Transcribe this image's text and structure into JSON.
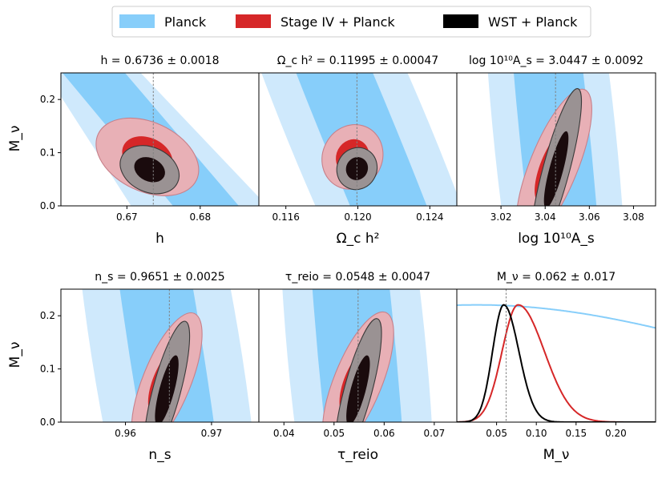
{
  "legend": {
    "items": [
      {
        "label": "Planck",
        "color": "#87cefa"
      },
      {
        "label": "Stage IV + Planck",
        "color": "#d62728"
      },
      {
        "label": "WST + Planck",
        "color": "#000000"
      }
    ]
  },
  "ylabel": "M_ν",
  "colors": {
    "planck_outer": "#cfe9fc",
    "planck_inner": "#87cefa",
    "stage_outer": "#e8b0b6",
    "stage_inner": "#d62728",
    "wst_outer": "#9a9293",
    "wst_inner": "#1a0b0d",
    "truth_line": "#808080"
  },
  "chart_data": [
    {
      "type": "contour",
      "title": "h = 0.6736 ± 0.0018",
      "xlabel": "h",
      "xlim": [
        0.661,
        0.688
      ],
      "ylim": [
        0.0,
        0.25
      ],
      "xticks": [
        0.67,
        0.68
      ],
      "xtick_labels": [
        "0.67",
        "0.68"
      ],
      "yticks": [
        0.0,
        0.1,
        0.2
      ],
      "ytick_labels": [
        "0.0",
        "0.1",
        "0.2"
      ],
      "truth_x": 0.6736,
      "planck": {
        "kind": "band",
        "inner": [
          [
            0.66,
            0.27
          ],
          [
            0.6685,
            0.27
          ],
          [
            0.6865,
            -0.02
          ],
          [
            0.6775,
            -0.02
          ]
        ],
        "outer": [
          [
            0.658,
            0.27
          ],
          [
            0.6705,
            0.27
          ],
          [
            0.6905,
            -0.02
          ],
          [
            0.6715,
            -0.02
          ]
        ]
      },
      "stage_iv": {
        "cx": 0.6728,
        "cy": 0.092,
        "rx_out": 0.0074,
        "ry_out": 0.065,
        "rx_in": 0.0036,
        "ry_in": 0.036,
        "tilt": 25
      },
      "wst": {
        "cx": 0.6731,
        "cy": 0.068,
        "rx_out": 0.0042,
        "ry_out": 0.042,
        "rx_in": 0.0022,
        "ry_in": 0.022,
        "tilt": 25
      }
    },
    {
      "type": "contour",
      "title": "Ω_c h² = 0.11995 ± 0.00047",
      "xlabel": "Ω_c h²",
      "xlim": [
        0.1145,
        0.1255
      ],
      "ylim": [
        0.0,
        0.25
      ],
      "xticks": [
        0.116,
        0.12,
        0.124
      ],
      "xtick_labels": [
        "0.116",
        "0.120",
        "0.124"
      ],
      "yticks": [
        0.0,
        0.1,
        0.2
      ],
      "ytick_labels": [
        "0.0",
        "0.1",
        "0.2"
      ],
      "truth_x": 0.11995,
      "planck": {
        "kind": "vband",
        "cx": 0.1202,
        "half_inner": 0.0021,
        "half_outer": 0.004,
        "tilt": 0.0015
      },
      "stage_iv": {
        "cx": 0.1197,
        "cy": 0.092,
        "rx_out": 0.00165,
        "ry_out": 0.062,
        "rx_in": 0.0009,
        "ry_in": 0.034,
        "tilt": 28
      },
      "wst": {
        "cx": 0.11995,
        "cy": 0.07,
        "rx_out": 0.0011,
        "ry_out": 0.04,
        "rx_in": 0.0006,
        "ry_in": 0.022,
        "tilt": 28
      }
    },
    {
      "type": "contour",
      "title": "log 10¹⁰A_s = 3.0447 ± 0.0092",
      "xlabel": "log 10¹⁰A_s",
      "xlim": [
        3.0,
        3.09
      ],
      "ylim": [
        0.0,
        0.25
      ],
      "xticks": [
        3.02,
        3.04,
        3.06,
        3.08
      ],
      "xtick_labels": [
        "3.02",
        "3.04",
        "3.06",
        "3.08"
      ],
      "yticks": [
        0.0,
        0.1,
        0.2
      ],
      "ytick_labels": [
        "0.0",
        "0.1",
        "0.2"
      ],
      "truth_x": 3.0447,
      "planck": {
        "kind": "vband",
        "cx": 3.0445,
        "half_inner": 0.0155,
        "half_outer": 0.027,
        "tilt": 0.003
      },
      "stage_iv": {
        "cx": 3.044,
        "cy": 0.076,
        "rx_out": 0.037,
        "ry_out": 0.045,
        "rx_in": 0.018,
        "ry_in": 0.025,
        "tilt": -68
      },
      "wst": {
        "cx": 3.045,
        "cy": 0.068,
        "rx_out": 0.038,
        "ry_out": 0.025,
        "rx_in": 0.018,
        "ry_in": 0.013,
        "tilt": -75
      }
    },
    {
      "type": "contour",
      "title": "n_s = 0.9651 ± 0.0025",
      "xlabel": "n_s",
      "xlim": [
        0.9525,
        0.9755
      ],
      "ylim": [
        0.0,
        0.25
      ],
      "xticks": [
        0.96,
        0.97
      ],
      "xtick_labels": [
        "0.96",
        "0.97"
      ],
      "yticks": [
        0.0,
        0.1,
        0.2
      ],
      "ytick_labels": [
        "0.0",
        "0.1",
        "0.2"
      ],
      "truth_x": 0.9651,
      "planck": {
        "kind": "vband",
        "cx": 0.9648,
        "half_inner": 0.0042,
        "half_outer": 0.0085,
        "tilt": 0.0012
      },
      "stage_iv": {
        "cx": 0.9648,
        "cy": 0.077,
        "rx_out": 0.0085,
        "ry_out": 0.045,
        "rx_in": 0.0042,
        "ry_in": 0.026,
        "tilt": -68
      },
      "wst": {
        "cx": 0.9648,
        "cy": 0.06,
        "rx_out": 0.0083,
        "ry_out": 0.026,
        "rx_in": 0.0042,
        "ry_in": 0.014,
        "tilt": -75
      }
    },
    {
      "type": "contour",
      "title": "τ_reio = 0.0548 ± 0.0047",
      "xlabel": "τ_reio",
      "xlim": [
        0.035,
        0.0745
      ],
      "ylim": [
        0.0,
        0.25
      ],
      "xticks": [
        0.04,
        0.05,
        0.06,
        0.07
      ],
      "xtick_labels": [
        "0.04",
        "0.05",
        "0.06",
        "0.07"
      ],
      "yticks": [
        0.0,
        0.1,
        0.2
      ],
      "ytick_labels": [
        "0.0",
        "0.1",
        "0.2"
      ],
      "truth_x": 0.0548,
      "planck": {
        "kind": "vband",
        "cx": 0.0546,
        "half_inner": 0.0076,
        "half_outer": 0.0135,
        "tilt": 0.0012
      },
      "stage_iv": {
        "cx": 0.0548,
        "cy": 0.077,
        "rx_out": 0.0148,
        "ry_out": 0.045,
        "rx_in": 0.0072,
        "ry_in": 0.026,
        "tilt": -68
      },
      "wst": {
        "cx": 0.0548,
        "cy": 0.06,
        "rx_out": 0.0148,
        "ry_out": 0.026,
        "rx_in": 0.0072,
        "ry_in": 0.014,
        "tilt": -75
      }
    },
    {
      "type": "line",
      "title": "M_ν = 0.062 ± 0.017",
      "xlabel": "M_ν",
      "xlim": [
        0.0,
        0.25
      ],
      "ylim": [
        0.0,
        1.1
      ],
      "xticks": [
        0.05,
        0.1,
        0.15,
        0.2
      ],
      "xtick_labels": [
        "0.05",
        "0.10",
        "0.15",
        "0.20"
      ],
      "truth_x": 0.062,
      "series": [
        {
          "name": "Planck",
          "kind": "wide",
          "peak_x": 0.025,
          "peak_y": 0.97,
          "sigma": 0.34
        },
        {
          "name": "Stage IV + Planck",
          "kind": "skewed",
          "peak_x": 0.077,
          "peak_y": 0.97,
          "sigma_left": 0.02,
          "sigma_right": 0.033
        },
        {
          "name": "WST + Planck",
          "kind": "skewed",
          "peak_x": 0.059,
          "peak_y": 0.97,
          "sigma_left": 0.014,
          "sigma_right": 0.019
        }
      ]
    }
  ]
}
